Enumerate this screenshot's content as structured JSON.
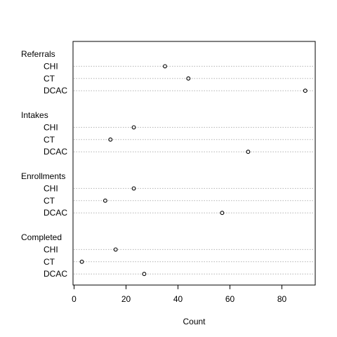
{
  "chart_data": {
    "type": "scatter",
    "title": "",
    "xlabel": "Count",
    "ylabel": "",
    "xlim": [
      0,
      92
    ],
    "x_ticks": [
      0,
      20,
      40,
      60,
      80
    ],
    "x_tick_labels": [
      "0",
      "20",
      "40",
      "60",
      "80"
    ],
    "grid": "dotted horizontal guide lines per row",
    "legend": "none",
    "groups": [
      {
        "name": "Referrals",
        "items": [
          {
            "label": "CHI",
            "value": 35
          },
          {
            "label": "CT",
            "value": 44
          },
          {
            "label": "DCAC",
            "value": 89
          }
        ]
      },
      {
        "name": "Intakes",
        "items": [
          {
            "label": "CHI",
            "value": 23
          },
          {
            "label": "CT",
            "value": 14
          },
          {
            "label": "DCAC",
            "value": 67
          }
        ]
      },
      {
        "name": "Enrollments",
        "items": [
          {
            "label": "CHI",
            "value": 23
          },
          {
            "label": "CT",
            "value": 12
          },
          {
            "label": "DCAC",
            "value": 57
          }
        ]
      },
      {
        "name": "Completed",
        "items": [
          {
            "label": "CHI",
            "value": 16
          },
          {
            "label": "CT",
            "value": 3
          },
          {
            "label": "DCAC",
            "value": 27
          }
        ]
      }
    ]
  }
}
